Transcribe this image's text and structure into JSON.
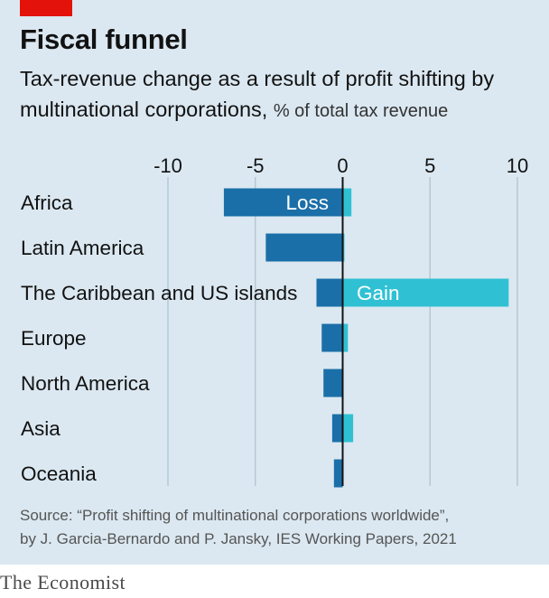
{
  "header": {
    "title": "Fiscal funnel",
    "subtitle": "Tax-revenue change as a result of profit shifting by multinational corporations,",
    "unit": "% of total tax revenue"
  },
  "footer": {
    "source_line1": "Source: “Profit shifting of multinational corporations worldwide”,",
    "source_line2": "by J. Garcia-Bernardo and P. Jansky, IES Working Papers, 2021",
    "logo": "The Economist"
  },
  "colors": {
    "background": "#dbe8f1",
    "loss": "#1b6fa8",
    "gain": "#2fc1d3",
    "grid": "#b4c8d4",
    "brand_red": "#e3120b"
  },
  "chart_data": {
    "type": "bar",
    "orientation": "horizontal",
    "xlim": [
      -10,
      10
    ],
    "xticks": [
      "-10",
      "-5",
      "0",
      "5",
      "10"
    ],
    "tick_values": [
      -10,
      -5,
      0,
      5,
      10
    ],
    "grid": true,
    "categories": [
      "Africa",
      "Latin America",
      "The Caribbean and US islands",
      "Europe",
      "North America",
      "Asia",
      "Oceania"
    ],
    "series": [
      {
        "name": "Loss",
        "values": [
          -6.8,
          -4.4,
          -1.5,
          -1.2,
          -1.1,
          -0.6,
          -0.5
        ]
      },
      {
        "name": "Gain",
        "values": [
          0.5,
          0.1,
          9.5,
          0.3,
          0.0,
          0.6,
          0.0
        ]
      }
    ]
  }
}
